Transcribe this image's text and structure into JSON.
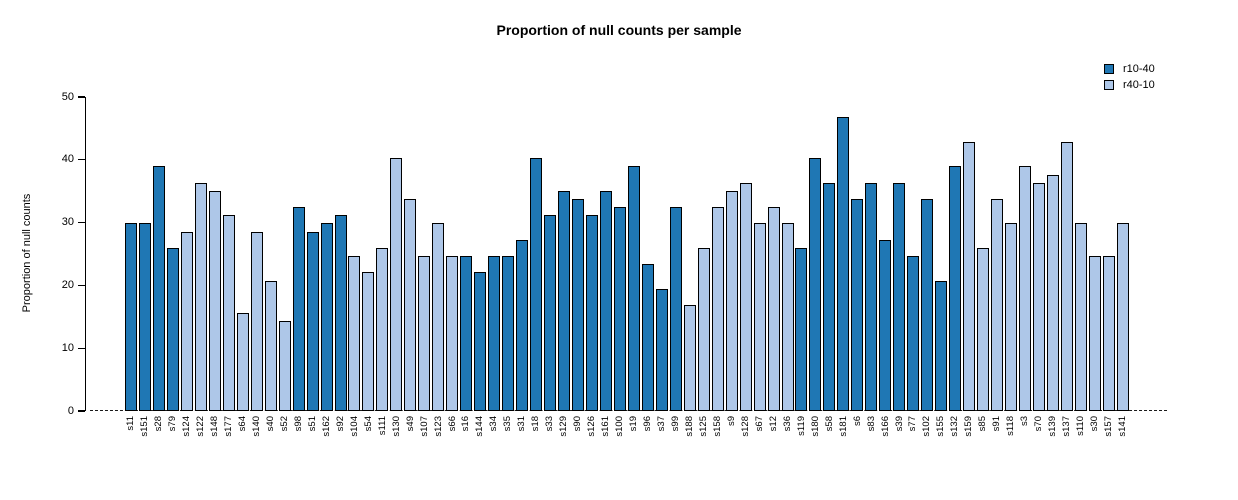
{
  "title": "Proportion of null counts per sample",
  "y_axis": {
    "label": "Proportion of null counts",
    "ticks": [
      0,
      10,
      20,
      30,
      40,
      50
    ]
  },
  "legend": {
    "position": "top-right",
    "entries": [
      {
        "label": "r10-40",
        "color": "#1F77B4"
      },
      {
        "label": "r40-10",
        "color": "#AEC7E8"
      }
    ]
  },
  "chart_data": {
    "type": "bar",
    "title": "Proportion of null counts per sample",
    "xlabel": "",
    "ylabel": "Proportion of null counts",
    "ylim": [
      0,
      50
    ],
    "grid": false,
    "zero_line_style": "dashed",
    "series_colors": {
      "r10-40": "#1F77B4",
      "r40-10": "#AEC7E8"
    },
    "bar_outline_color": "#000000",
    "bars": [
      {
        "sample": "s11",
        "value": 29.87,
        "series": "r10-40"
      },
      {
        "sample": "s151",
        "value": 29.87,
        "series": "r10-40"
      },
      {
        "sample": "s28",
        "value": 38.96,
        "series": "r10-40"
      },
      {
        "sample": "s79",
        "value": 25.97,
        "series": "r10-40"
      },
      {
        "sample": "s124",
        "value": 28.57,
        "series": "r40-10"
      },
      {
        "sample": "s122",
        "value": 36.36,
        "series": "r40-10"
      },
      {
        "sample": "s148",
        "value": 35.06,
        "series": "r40-10"
      },
      {
        "sample": "s177",
        "value": 31.17,
        "series": "r40-10"
      },
      {
        "sample": "s64",
        "value": 15.58,
        "series": "r40-10"
      },
      {
        "sample": "s140",
        "value": 28.57,
        "series": "r40-10"
      },
      {
        "sample": "s40",
        "value": 20.78,
        "series": "r40-10"
      },
      {
        "sample": "s52",
        "value": 14.29,
        "series": "r40-10"
      },
      {
        "sample": "s98",
        "value": 32.47,
        "series": "r10-40"
      },
      {
        "sample": "s51",
        "value": 28.57,
        "series": "r10-40"
      },
      {
        "sample": "s162",
        "value": 29.87,
        "series": "r10-40"
      },
      {
        "sample": "s92",
        "value": 31.17,
        "series": "r10-40"
      },
      {
        "sample": "s104",
        "value": 24.68,
        "series": "r40-10"
      },
      {
        "sample": "s54",
        "value": 22.08,
        "series": "r40-10"
      },
      {
        "sample": "s111",
        "value": 25.97,
        "series": "r40-10"
      },
      {
        "sample": "s130",
        "value": 40.26,
        "series": "r40-10"
      },
      {
        "sample": "s49",
        "value": 33.77,
        "series": "r40-10"
      },
      {
        "sample": "s107",
        "value": 24.68,
        "series": "r40-10"
      },
      {
        "sample": "s123",
        "value": 29.87,
        "series": "r40-10"
      },
      {
        "sample": "s66",
        "value": 24.68,
        "series": "r40-10"
      },
      {
        "sample": "s16",
        "value": 24.68,
        "series": "r10-40"
      },
      {
        "sample": "s144",
        "value": 22.08,
        "series": "r10-40"
      },
      {
        "sample": "s34",
        "value": 24.68,
        "series": "r10-40"
      },
      {
        "sample": "s35",
        "value": 24.68,
        "series": "r10-40"
      },
      {
        "sample": "s31",
        "value": 27.27,
        "series": "r10-40"
      },
      {
        "sample": "s18",
        "value": 40.26,
        "series": "r10-40"
      },
      {
        "sample": "s33",
        "value": 31.17,
        "series": "r10-40"
      },
      {
        "sample": "s129",
        "value": 35.06,
        "series": "r10-40"
      },
      {
        "sample": "s90",
        "value": 33.77,
        "series": "r10-40"
      },
      {
        "sample": "s126",
        "value": 31.17,
        "series": "r10-40"
      },
      {
        "sample": "s161",
        "value": 35.06,
        "series": "r10-40"
      },
      {
        "sample": "s100",
        "value": 32.47,
        "series": "r10-40"
      },
      {
        "sample": "s19",
        "value": 38.96,
        "series": "r10-40"
      },
      {
        "sample": "s96",
        "value": 23.38,
        "series": "r10-40"
      },
      {
        "sample": "s37",
        "value": 19.48,
        "series": "r10-40"
      },
      {
        "sample": "s99",
        "value": 32.47,
        "series": "r10-40"
      },
      {
        "sample": "s188",
        "value": 16.88,
        "series": "r40-10"
      },
      {
        "sample": "s125",
        "value": 25.97,
        "series": "r40-10"
      },
      {
        "sample": "s158",
        "value": 32.47,
        "series": "r40-10"
      },
      {
        "sample": "s9",
        "value": 35.06,
        "series": "r40-10"
      },
      {
        "sample": "s128",
        "value": 36.36,
        "series": "r40-10"
      },
      {
        "sample": "s67",
        "value": 29.87,
        "series": "r40-10"
      },
      {
        "sample": "s12",
        "value": 32.47,
        "series": "r40-10"
      },
      {
        "sample": "s36",
        "value": 29.87,
        "series": "r40-10"
      },
      {
        "sample": "s119",
        "value": 25.97,
        "series": "r10-40"
      },
      {
        "sample": "s180",
        "value": 40.26,
        "series": "r10-40"
      },
      {
        "sample": "s58",
        "value": 36.36,
        "series": "r10-40"
      },
      {
        "sample": "s181",
        "value": 46.75,
        "series": "r10-40"
      },
      {
        "sample": "s6",
        "value": 33.77,
        "series": "r10-40"
      },
      {
        "sample": "s83",
        "value": 36.36,
        "series": "r10-40"
      },
      {
        "sample": "s166",
        "value": 27.27,
        "series": "r10-40"
      },
      {
        "sample": "s39",
        "value": 36.36,
        "series": "r10-40"
      },
      {
        "sample": "s77",
        "value": 24.68,
        "series": "r10-40"
      },
      {
        "sample": "s102",
        "value": 33.77,
        "series": "r10-40"
      },
      {
        "sample": "s155",
        "value": 20.78,
        "series": "r10-40"
      },
      {
        "sample": "s132",
        "value": 38.96,
        "series": "r10-40"
      },
      {
        "sample": "s159",
        "value": 42.86,
        "series": "r40-10"
      },
      {
        "sample": "s85",
        "value": 25.97,
        "series": "r40-10"
      },
      {
        "sample": "s91",
        "value": 33.77,
        "series": "r40-10"
      },
      {
        "sample": "s118",
        "value": 29.87,
        "series": "r40-10"
      },
      {
        "sample": "s3",
        "value": 38.96,
        "series": "r40-10"
      },
      {
        "sample": "s70",
        "value": 36.36,
        "series": "r40-10"
      },
      {
        "sample": "s139",
        "value": 37.66,
        "series": "r40-10"
      },
      {
        "sample": "s137",
        "value": 42.86,
        "series": "r40-10"
      },
      {
        "sample": "s110",
        "value": 29.87,
        "series": "r40-10"
      },
      {
        "sample": "s30",
        "value": 24.68,
        "series": "r40-10"
      },
      {
        "sample": "s157",
        "value": 24.68,
        "series": "r40-10"
      },
      {
        "sample": "s141",
        "value": 29.87,
        "series": "r40-10"
      }
    ]
  }
}
